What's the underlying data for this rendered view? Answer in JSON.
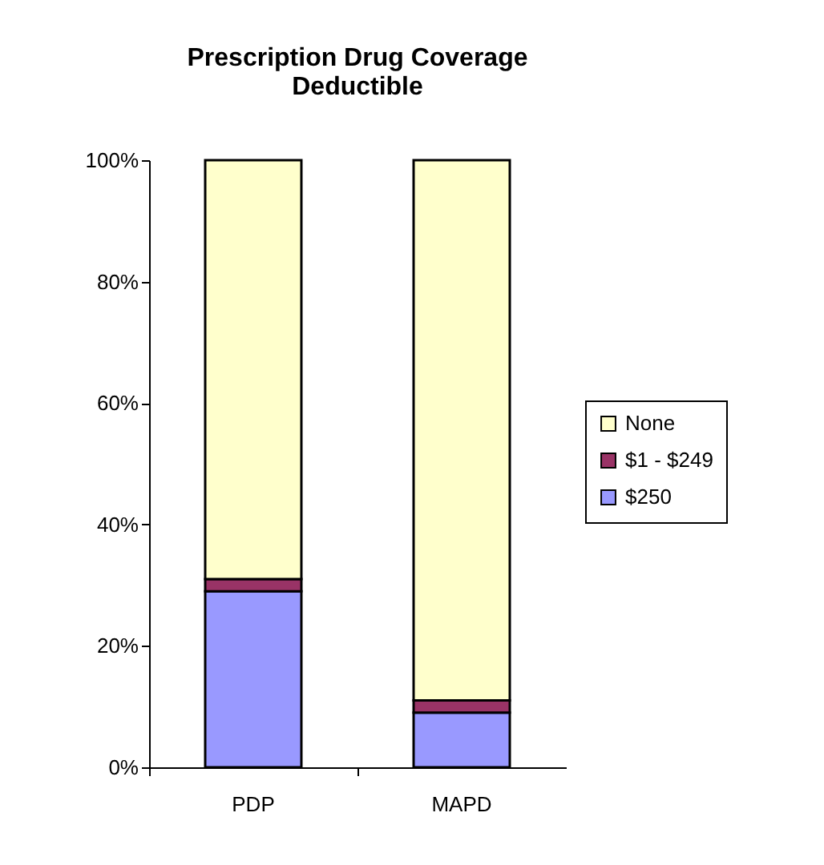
{
  "chart_data": {
    "type": "bar",
    "title": "Prescription Drug Coverage\nDeductible",
    "categories": [
      "PDP",
      "MAPD"
    ],
    "stacked": true,
    "legend": "right",
    "grid": false,
    "series": [
      {
        "name": "$250",
        "color": "#9999ff",
        "values": [
          29,
          9
        ]
      },
      {
        "name": "$1 - $249",
        "color": "#993366",
        "values": [
          2,
          2
        ]
      },
      {
        "name": "None",
        "color": "#ffffcc",
        "values": [
          69,
          89
        ]
      }
    ],
    "ylim": [
      0,
      100
    ],
    "yticks": [
      {
        "value": 0,
        "label": "0%"
      },
      {
        "value": 20,
        "label": "20%"
      },
      {
        "value": 40,
        "label": "40%"
      },
      {
        "value": 60,
        "label": "60%"
      },
      {
        "value": 80,
        "label": "80%"
      },
      {
        "value": 100,
        "label": "100%"
      }
    ]
  }
}
